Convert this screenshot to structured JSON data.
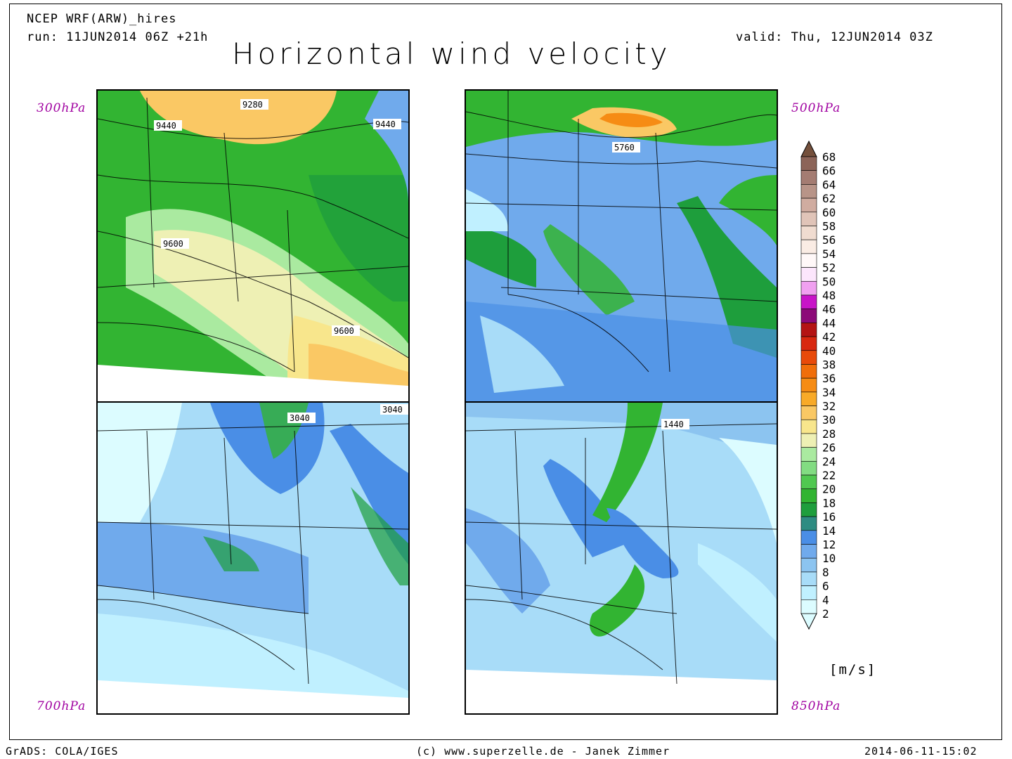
{
  "header": {
    "model": "NCEP WRF(ARW)_hires",
    "run": "run: 11JUN2014 06Z +21h",
    "valid": "valid: Thu, 12JUN2014 03Z",
    "title": "Horizontal wind velocity"
  },
  "panels": [
    {
      "level": "300hPa",
      "labels": [
        "9280",
        "9440",
        "9440",
        "9600",
        "9600"
      ],
      "dominant": "yellow-orange jet with red core"
    },
    {
      "level": "500hPa",
      "labels": [
        "5760"
      ],
      "dominant": "blue with green bands"
    },
    {
      "level": "700hPa",
      "labels": [
        "3040",
        "3040"
      ],
      "dominant": "light blue"
    },
    {
      "level": "850hPa",
      "labels": [
        "1440"
      ],
      "dominant": "light blue with green low-level jet"
    }
  ],
  "legend": {
    "unit": "[m/s]",
    "values": [
      "2",
      "4",
      "6",
      "8",
      "10",
      "12",
      "14",
      "16",
      "18",
      "20",
      "22",
      "24",
      "26",
      "28",
      "30",
      "32",
      "34",
      "36",
      "38",
      "40",
      "42",
      "44",
      "46",
      "48",
      "50",
      "52",
      "54",
      "56",
      "58",
      "60",
      "62",
      "64",
      "66",
      "68"
    ],
    "colors": [
      "#dcfcff",
      "#c0f0ff",
      "#a8dcf8",
      "#8cc4f0",
      "#70aaec",
      "#4a8ee6",
      "#2e8c82",
      "#1e9e3c",
      "#32b432",
      "#50c850",
      "#82dc82",
      "#aaeaa0",
      "#eef0b4",
      "#f8e68c",
      "#fac864",
      "#f8aa28",
      "#f68c14",
      "#f06e0a",
      "#e84a0a",
      "#d82810",
      "#b41414",
      "#8c0a78",
      "#c814c8",
      "#f0a0f0",
      "#fce6fc",
      "#fff8f8",
      "#faece4",
      "#f0dcd0",
      "#e0c4b8",
      "#d0aca0",
      "#b89488",
      "#a47c72",
      "#8c6458",
      "#74503c"
    ]
  },
  "footer": {
    "left": "GrADS: COLA/IGES",
    "center": "(c) www.superzelle.de - Janek Zimmer",
    "right": "2014-06-11-15:02"
  }
}
